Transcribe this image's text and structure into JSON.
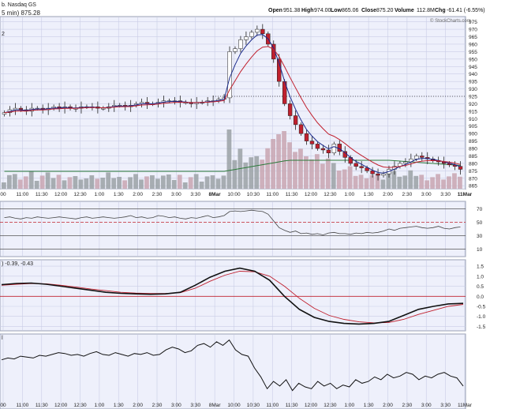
{
  "header": {
    "left_top": "b. Nasdaq GS",
    "left_sub": "5 min) 875.28",
    "left_sub2": "2",
    "open_label": "Open",
    "open_value": "951.38",
    "high_label": "High",
    "high_value": "974.00",
    "low_label": "Low",
    "low_value": "865.06",
    "close_label": "Close",
    "close_value": "875.20",
    "volume_label": "Volume",
    "volume_value": "112.8M",
    "chg_label": "Chg",
    "chg_value": "-61.41 (-6.55%)",
    "watermark": "© StockCharts.com"
  },
  "x_labels": [
    "00",
    "11:00",
    "11:30",
    "12:00",
    "12:30",
    "1:00",
    "1:30",
    "2:00",
    "2:30",
    "3:00",
    "3:30",
    "8Mar",
    "10:00",
    "10:30",
    "11:00",
    "11:30",
    "12:00",
    "12:30",
    "1:00",
    "1:30",
    "2:00",
    "2:30",
    "3:00",
    "3:30",
    "11Mar"
  ],
  "rsi": {
    "ticks": [
      "70",
      "50",
      "30",
      "10"
    ]
  },
  "macd": {
    "label": ") -0.39, -0.43",
    "ticks": [
      "1.5",
      "1.0",
      "0.5",
      "0.0",
      "-0.5",
      "-1.0",
      "-1.5"
    ]
  },
  "bottom": {
    "label": "l"
  },
  "colors": {
    "up": "#ffffff",
    "down": "#c0202e",
    "ema_fast": "#1a2a8c",
    "ema_slow": "#c0202e",
    "volume": "#c8a4b0",
    "volume_up": "#9aa1a4",
    "vol_ma": "#2c7a3a"
  },
  "chart_data": {
    "type": "candlestick",
    "price_ticks": [
      "975",
      "970",
      "965",
      "960",
      "955",
      "950",
      "945",
      "940",
      "935",
      "930",
      "925",
      "920",
      "915",
      "910",
      "905",
      "900",
      "895",
      "890",
      "885",
      "880",
      "875",
      "870",
      "865"
    ],
    "price_range": [
      863,
      978
    ],
    "reference_line": 925,
    "closes": [
      914,
      916,
      917,
      916,
      915,
      917,
      917,
      916,
      917,
      918,
      917,
      918,
      917,
      917,
      918,
      918,
      918,
      917,
      917,
      918,
      919,
      919,
      918,
      919,
      920,
      921,
      920,
      920,
      921,
      922,
      922,
      922,
      921,
      921,
      920,
      921,
      921,
      922,
      922,
      923,
      924,
      955,
      957,
      963,
      965,
      968,
      970,
      967,
      960,
      950,
      935,
      920,
      912,
      906,
      900,
      895,
      893,
      890,
      889,
      887,
      893,
      888,
      884,
      880,
      878,
      877,
      875,
      873,
      872,
      873,
      876,
      878,
      880,
      881,
      883,
      885,
      884,
      883,
      882,
      881,
      880,
      879,
      878,
      876
    ],
    "rsi_values": [
      57,
      58,
      56,
      55,
      57,
      56,
      58,
      57,
      56,
      57,
      58,
      57,
      56,
      55,
      57,
      58,
      56,
      57,
      58,
      57,
      56,
      57,
      58,
      60,
      57,
      58,
      56,
      57,
      60,
      59,
      57,
      58,
      56,
      55,
      57,
      56,
      58,
      60,
      57,
      58,
      60,
      66,
      67,
      66,
      67,
      68,
      67,
      66,
      62,
      52,
      42,
      38,
      35,
      37,
      33,
      34,
      32,
      33,
      31,
      34,
      35,
      33,
      33,
      32,
      34,
      33,
      35,
      34,
      35,
      37,
      40,
      38,
      41,
      42,
      43,
      44,
      42,
      41,
      42,
      44,
      41,
      40,
      42,
      43
    ],
    "macd_line": [
      0.58,
      0.64,
      0.66,
      0.6,
      0.5,
      0.4,
      0.3,
      0.2,
      0.15,
      0.12,
      0.1,
      0.12,
      0.2,
      0.55,
      0.95,
      1.25,
      1.4,
      1.25,
      0.8,
      0.0,
      -0.65,
      -1.05,
      -1.25,
      -1.35,
      -1.38,
      -1.35,
      -1.25,
      -0.95,
      -0.65,
      -0.5,
      -0.38,
      -0.35
    ],
    "macd_signal": [
      0.55,
      0.6,
      0.64,
      0.62,
      0.55,
      0.46,
      0.36,
      0.28,
      0.2,
      0.16,
      0.14,
      0.14,
      0.18,
      0.4,
      0.75,
      1.05,
      1.25,
      1.22,
      1.0,
      0.5,
      -0.1,
      -0.6,
      -0.95,
      -1.15,
      -1.27,
      -1.32,
      -1.3,
      -1.15,
      -0.9,
      -0.7,
      -0.5,
      -0.4
    ],
    "bottom_values": [
      44,
      46,
      45,
      48,
      47,
      46,
      49,
      48,
      50,
      52,
      51,
      49,
      50,
      48,
      51,
      53,
      50,
      49,
      52,
      50,
      48,
      51,
      50,
      52,
      49,
      50,
      55,
      58,
      56,
      52,
      54,
      60,
      62,
      58,
      64,
      60,
      66,
      55,
      50,
      48,
      35,
      25,
      12,
      20,
      15,
      22,
      10,
      18,
      14,
      12,
      20,
      15,
      18,
      12,
      16,
      14,
      22,
      18,
      20,
      25,
      22,
      28,
      24,
      26,
      30,
      28,
      22,
      26,
      24,
      28,
      30,
      26,
      24,
      15
    ]
  }
}
